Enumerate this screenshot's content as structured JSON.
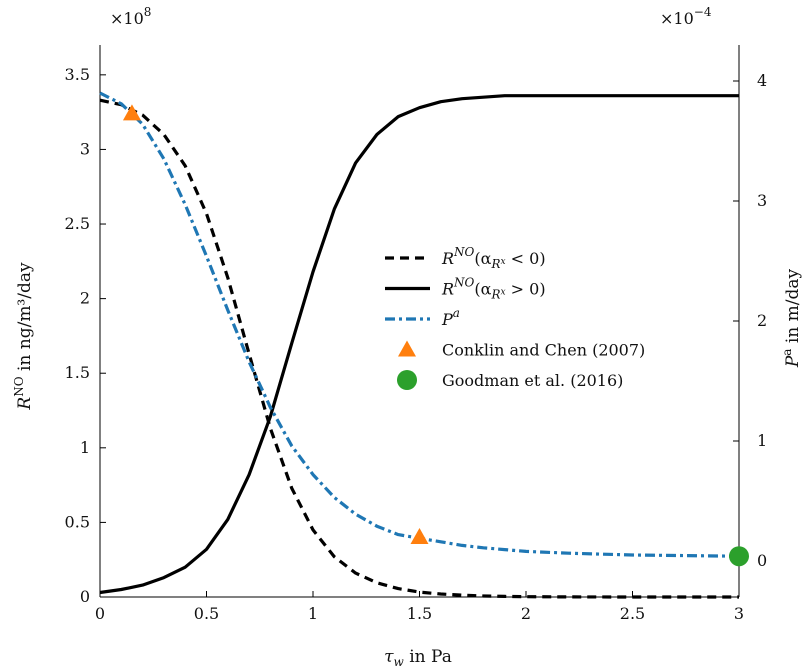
{
  "chart_data": {
    "type": "line",
    "x_label_main": "τ",
    "x_label_sub": "w",
    "x_label_rest": " in Pa",
    "y_left_label": "R^NO in ng/m³/day",
    "y_left_label_main": "R",
    "y_left_label_sup": "NO",
    "y_left_label_rest": " in ng/m³/day",
    "y_right_label": "P^a in m/day",
    "y_right_label_main": "P",
    "y_right_label_sup": "a",
    "y_right_label_rest": " in m/day",
    "y_left_multiplier": "×10^8",
    "y_left_multiplier_base": "×10",
    "y_left_multiplier_exp": "8",
    "y_right_multiplier": "×10^-4",
    "y_right_multiplier_base": "×10",
    "y_right_multiplier_exp": "−4",
    "xlim": [
      0,
      3
    ],
    "y_left_lim": [
      0,
      3.7
    ],
    "y_right_lim": [
      -0.3,
      4.3
    ],
    "x_ticks": [
      0,
      0.5,
      1,
      1.5,
      2,
      2.5,
      3
    ],
    "x_tick_labels": [
      "0",
      "0.5",
      "1",
      "1.5",
      "2",
      "2.5",
      "3"
    ],
    "y_left_ticks": [
      0,
      0.5,
      1,
      1.5,
      2,
      2.5,
      3,
      3.5
    ],
    "y_left_tick_labels": [
      "0",
      "0.5",
      "1",
      "1.5",
      "2",
      "2.5",
      "3",
      "3.5"
    ],
    "y_right_ticks": [
      0,
      1,
      2,
      3,
      4
    ],
    "y_right_tick_labels": [
      "0",
      "1",
      "2",
      "3",
      "4"
    ],
    "grid": false,
    "legend_position": "center-right",
    "series": [
      {
        "name": "R^NO(α_R^x < 0)",
        "axis": "left",
        "style": "dashed",
        "color": "#000000",
        "x": [
          0,
          0.1,
          0.2,
          0.3,
          0.4,
          0.5,
          0.6,
          0.7,
          0.8,
          0.9,
          1.0,
          1.1,
          1.2,
          1.3,
          1.4,
          1.5,
          1.6,
          1.7,
          1.8,
          1.9,
          2.0,
          2.2,
          2.5,
          3.0
        ],
        "y": [
          3.33,
          3.3,
          3.23,
          3.1,
          2.89,
          2.57,
          2.14,
          1.63,
          1.13,
          0.73,
          0.45,
          0.27,
          0.16,
          0.095,
          0.056,
          0.033,
          0.02,
          0.012,
          0.007,
          0.004,
          0.002,
          0.001,
          0.0,
          0.0
        ]
      },
      {
        "name": "R^NO(α_R^x > 0)",
        "axis": "left",
        "style": "solid",
        "color": "#000000",
        "x": [
          0,
          0.1,
          0.2,
          0.3,
          0.4,
          0.5,
          0.6,
          0.7,
          0.8,
          0.9,
          1.0,
          1.1,
          1.2,
          1.3,
          1.4,
          1.5,
          1.6,
          1.7,
          1.8,
          1.9,
          2.0,
          2.2,
          2.5,
          3.0
        ],
        "y": [
          0.03,
          0.05,
          0.08,
          0.13,
          0.2,
          0.32,
          0.52,
          0.82,
          1.21,
          1.7,
          2.18,
          2.6,
          2.91,
          3.1,
          3.22,
          3.28,
          3.32,
          3.34,
          3.35,
          3.36,
          3.36,
          3.36,
          3.36,
          3.36
        ]
      },
      {
        "name": "P^a",
        "axis": "right",
        "style": "dash-dot",
        "color": "#1f77b4",
        "x": [
          0,
          0.1,
          0.2,
          0.3,
          0.4,
          0.5,
          0.6,
          0.7,
          0.8,
          0.9,
          1.0,
          1.1,
          1.2,
          1.3,
          1.4,
          1.5,
          1.6,
          1.7,
          1.8,
          1.9,
          2.0,
          2.2,
          2.5,
          3.0
        ],
        "y": [
          3.9,
          3.81,
          3.64,
          3.35,
          2.97,
          2.54,
          2.09,
          1.66,
          1.28,
          0.96,
          0.72,
          0.53,
          0.39,
          0.29,
          0.22,
          0.19,
          0.16,
          0.13,
          0.11,
          0.095,
          0.08,
          0.065,
          0.05,
          0.04
        ]
      }
    ],
    "markers": [
      {
        "name": "Conklin and Chen (2007)",
        "shape": "triangle",
        "color": "#ff7f0e",
        "axis": "right",
        "points": [
          {
            "x": 0.15,
            "y": 3.73
          },
          {
            "x": 1.5,
            "y": 0.2
          }
        ]
      },
      {
        "name": "Goodman et al. (2016)",
        "shape": "circle",
        "color": "#2ca02c",
        "axis": "right",
        "points": [
          {
            "x": 3.0,
            "y": 0.04
          }
        ]
      }
    ],
    "legend": [
      {
        "kind": "line",
        "style": "dashed",
        "color": "#000000",
        "main": "R",
        "sup": "NO",
        "rest": "(α",
        "sub": "R",
        "subsup": "x",
        "tail": " < 0)"
      },
      {
        "kind": "line",
        "style": "solid",
        "color": "#000000",
        "main": "R",
        "sup": "NO",
        "rest": "(α",
        "sub": "R",
        "subsup": "x",
        "tail": " > 0)"
      },
      {
        "kind": "line",
        "style": "dash-dot",
        "color": "#1f77b4",
        "main": "P",
        "sup": "a",
        "rest": "",
        "sub": "",
        "subsup": "",
        "tail": ""
      },
      {
        "kind": "triangle",
        "color": "#ff7f0e",
        "text": "Conklin and Chen (2007)"
      },
      {
        "kind": "circle",
        "color": "#2ca02c",
        "text": "Goodman et al. (2016)"
      }
    ]
  }
}
